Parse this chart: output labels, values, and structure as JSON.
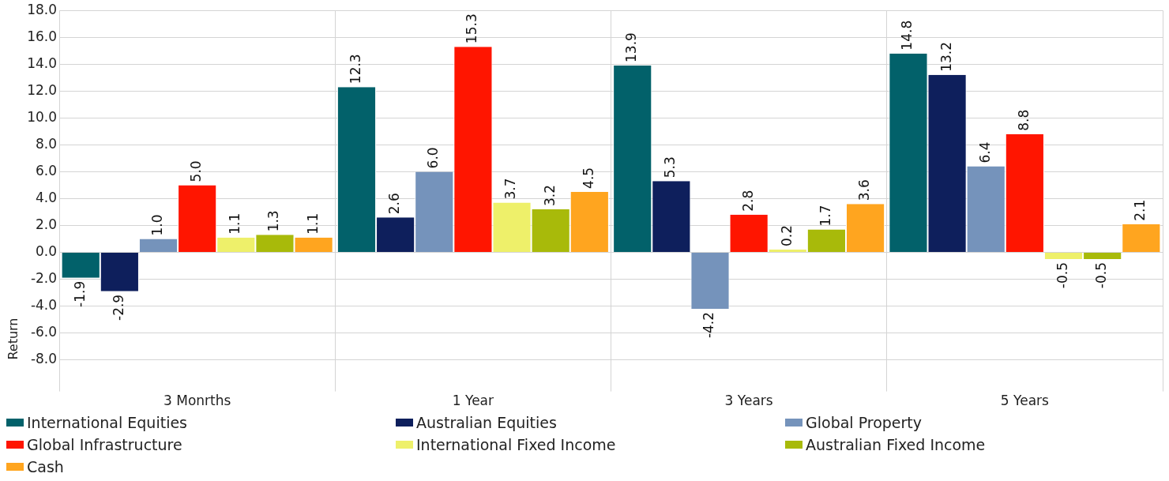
{
  "chart_data": {
    "type": "bar",
    "ylabel": "Return",
    "categories": [
      "3 Monrths",
      "1 Year",
      "3 Years",
      "5 Years"
    ],
    "series": [
      {
        "name": "International Equities",
        "color": "#02616a",
        "values": [
          -1.9,
          12.3,
          13.9,
          14.8
        ],
        "value_labels": [
          "-1.9",
          "12.3",
          "13.9",
          "14.8"
        ]
      },
      {
        "name": "Australian Equities",
        "color": "#0e1f5c",
        "values": [
          -2.9,
          2.6,
          5.3,
          13.2
        ],
        "value_labels": [
          "-2.9",
          "2.6",
          "5.3",
          "13.2"
        ]
      },
      {
        "name": "Global Property",
        "color": "#7593bb",
        "values": [
          1.0,
          6.0,
          -4.2,
          6.4
        ],
        "value_labels": [
          "1.0",
          "6.0",
          "-4.2",
          "6.4"
        ]
      },
      {
        "name": "Global Infrastructure",
        "color": "#ff1500",
        "values": [
          5.0,
          15.3,
          2.8,
          8.8
        ],
        "value_labels": [
          "5.0",
          "15.3",
          "2.8",
          "8.8"
        ]
      },
      {
        "name": "International Fixed Income",
        "color": "#eef06a",
        "values": [
          1.1,
          3.7,
          0.2,
          -0.5
        ],
        "value_labels": [
          "1.1",
          "3.7",
          "0.2",
          "-0.5"
        ]
      },
      {
        "name": "Australian Fixed Income",
        "color": "#a8ba0a",
        "values": [
          1.3,
          3.2,
          1.7,
          -0.5
        ],
        "value_labels": [
          "1.3",
          "3.2",
          "1.7",
          "-0.5"
        ]
      },
      {
        "name": "Cash",
        "color": "#ffa51f",
        "values": [
          1.1,
          4.5,
          3.6,
          2.1
        ],
        "value_labels": [
          "1.1",
          "4.5",
          "3.6",
          "2.1"
        ]
      }
    ],
    "ylim": [
      -8,
      18
    ],
    "yticks": [
      {
        "value": -8,
        "label": "-8.0"
      },
      {
        "value": -6,
        "label": "-6.0"
      },
      {
        "value": -4,
        "label": "-4.0"
      },
      {
        "value": -2,
        "label": "-2.0"
      },
      {
        "value": 0,
        "label": "0.0"
      },
      {
        "value": 2,
        "label": "2.0"
      },
      {
        "value": 4,
        "label": "4.0"
      },
      {
        "value": 6,
        "label": "6.0"
      },
      {
        "value": 8,
        "label": "8.0"
      },
      {
        "value": 10,
        "label": "10.0"
      },
      {
        "value": 12,
        "label": "12.0"
      },
      {
        "value": 14,
        "label": "14.0"
      },
      {
        "value": 16,
        "label": "16.0"
      },
      {
        "value": 18,
        "label": "18.0"
      }
    ],
    "grid": true,
    "legend": "bottom"
  }
}
